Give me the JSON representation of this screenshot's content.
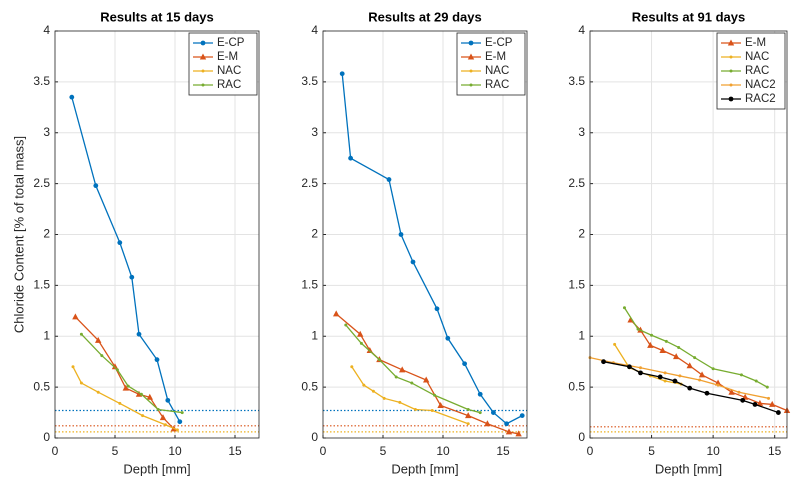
{
  "chart_data": [
    {
      "type": "line",
      "title": "Results at 15 days",
      "xlabel": "Depth [mm]",
      "ylabel": "Chloride Content [% of total mass]",
      "xlim": [
        0,
        17
      ],
      "ylim": [
        0,
        4
      ],
      "xticks": [
        0,
        5,
        10,
        15
      ],
      "yticks": [
        0,
        0.5,
        1,
        1.5,
        2,
        2.5,
        3,
        3.5,
        4
      ],
      "grid": true,
      "legend": "northeast",
      "series": [
        {
          "name": "E-CP",
          "color": "#0072BD",
          "marker": "o",
          "x": [
            1.4,
            3.4,
            5.4,
            6.4,
            7.0,
            8.5,
            9.4,
            10.4
          ],
          "values": [
            3.35,
            2.48,
            1.92,
            1.58,
            1.02,
            0.77,
            0.37,
            0.16
          ]
        },
        {
          "name": "E-M",
          "color": "#D95319",
          "marker": "^",
          "x": [
            1.7,
            3.6,
            5.0,
            5.9,
            7.0,
            7.9,
            9.0,
            9.9
          ],
          "values": [
            1.19,
            0.96,
            0.7,
            0.49,
            0.43,
            0.4,
            0.2,
            0.09
          ]
        },
        {
          "name": "NAC",
          "color": "#EDB120",
          "marker": ".",
          "x": [
            1.5,
            2.2,
            3.6,
            5.4,
            7.3,
            9.2,
            10.2
          ],
          "values": [
            0.7,
            0.54,
            0.45,
            0.34,
            0.22,
            0.13,
            0.08
          ]
        },
        {
          "name": "RAC",
          "color": "#77AC30",
          "marker": ".",
          "x": [
            2.2,
            3.9,
            5.2,
            6.1,
            7.2,
            8.6,
            10.6
          ],
          "values": [
            1.02,
            0.81,
            0.67,
            0.51,
            0.43,
            0.28,
            0.25
          ]
        }
      ],
      "reference_lines": [
        {
          "value": 0.27,
          "color": "#0072BD"
        },
        {
          "value": 0.12,
          "color": "#D95319"
        },
        {
          "value": 0.06,
          "color": "#EDB120"
        }
      ]
    },
    {
      "type": "line",
      "title": "Results at 29 days",
      "xlabel": "Depth [mm]",
      "xlim": [
        0,
        17
      ],
      "ylim": [
        0,
        4
      ],
      "xticks": [
        0,
        5,
        10,
        15
      ],
      "yticks": [
        0,
        0.5,
        1,
        1.5,
        2,
        2.5,
        3,
        3.5,
        4
      ],
      "grid": true,
      "legend": "northeast",
      "series": [
        {
          "name": "E-CP",
          "color": "#0072BD",
          "marker": "o",
          "x": [
            1.6,
            2.3,
            5.5,
            6.5,
            7.5,
            9.5,
            10.4,
            11.8,
            13.1,
            14.2,
            15.3,
            16.6
          ],
          "values": [
            3.58,
            2.75,
            2.54,
            2.0,
            1.73,
            1.27,
            0.98,
            0.73,
            0.43,
            0.25,
            0.14,
            0.22
          ]
        },
        {
          "name": "E-M",
          "color": "#D95319",
          "marker": "^",
          "x": [
            1.1,
            3.1,
            3.9,
            4.7,
            6.6,
            8.6,
            9.8,
            12.1,
            13.7,
            15.5,
            16.3
          ],
          "values": [
            1.22,
            1.02,
            0.86,
            0.77,
            0.67,
            0.57,
            0.32,
            0.22,
            0.14,
            0.06,
            0.04
          ]
        },
        {
          "name": "NAC",
          "color": "#EDB120",
          "marker": ".",
          "x": [
            2.4,
            3.4,
            4.2,
            5.1,
            6.4,
            7.7,
            9.1,
            12.1
          ],
          "values": [
            0.7,
            0.52,
            0.46,
            0.39,
            0.35,
            0.28,
            0.27,
            0.14
          ]
        },
        {
          "name": "RAC",
          "color": "#77AC30",
          "marker": ".",
          "x": [
            1.9,
            3.2,
            4.7,
            6.1,
            7.4,
            9.3,
            12.1,
            13.1
          ],
          "values": [
            1.11,
            0.93,
            0.77,
            0.6,
            0.54,
            0.42,
            0.28,
            0.25
          ]
        }
      ],
      "reference_lines": [
        {
          "value": 0.27,
          "color": "#0072BD"
        },
        {
          "value": 0.12,
          "color": "#D95319"
        },
        {
          "value": 0.06,
          "color": "#EDB120"
        }
      ]
    },
    {
      "type": "line",
      "title": "Results at 91 days",
      "xlabel": "Depth [mm]",
      "xlim": [
        0,
        16
      ],
      "ylim": [
        0,
        4
      ],
      "xticks": [
        0,
        5,
        10,
        15
      ],
      "yticks": [
        0,
        0.5,
        1,
        1.5,
        2,
        2.5,
        3,
        3.5,
        4
      ],
      "grid": true,
      "legend": "northeast",
      "series": [
        {
          "name": "E-M",
          "color": "#D95319",
          "marker": "^",
          "x": [
            3.3,
            4.1,
            4.9,
            5.9,
            7.0,
            8.1,
            9.1,
            10.4,
            11.5,
            12.6,
            13.8,
            14.8,
            16.0
          ],
          "values": [
            1.16,
            1.06,
            0.91,
            0.86,
            0.8,
            0.71,
            0.62,
            0.54,
            0.45,
            0.4,
            0.34,
            0.33,
            0.27
          ]
        },
        {
          "name": "NAC",
          "color": "#EDB120",
          "marker": ".",
          "x": [
            2.0,
            3.2,
            4.9,
            6.1,
            7.4
          ],
          "values": [
            0.92,
            0.69,
            0.61,
            0.56,
            0.53
          ]
        },
        {
          "name": "RAC",
          "color": "#77AC30",
          "marker": ".",
          "x": [
            2.8,
            3.9,
            5.0,
            6.2,
            7.2,
            8.5,
            10.0,
            12.3,
            13.5,
            14.4
          ],
          "values": [
            1.28,
            1.07,
            1.01,
            0.95,
            0.89,
            0.79,
            0.68,
            0.62,
            0.56,
            0.5
          ]
        },
        {
          "name": "NAC2",
          "color": "#F0A030",
          "marker": ".",
          "x": [
            0,
            1.9,
            4.1,
            6.1,
            7.3,
            8.9,
            10.4,
            12.1,
            14.5
          ],
          "values": [
            0.79,
            0.74,
            0.69,
            0.64,
            0.61,
            0.57,
            0.52,
            0.45,
            0.39
          ]
        },
        {
          "name": "RAC2",
          "color": "#000000",
          "marker": "o",
          "x": [
            1.1,
            3.2,
            4.1,
            5.7,
            6.9,
            8.1,
            9.5,
            12.4,
            13.4,
            15.3
          ],
          "values": [
            0.75,
            0.7,
            0.64,
            0.6,
            0.56,
            0.49,
            0.44,
            0.37,
            0.33,
            0.25
          ]
        }
      ],
      "reference_lines": [
        {
          "value": 0.11,
          "color": "#D95319"
        },
        {
          "value": 0.06,
          "color": "#EDB120"
        }
      ]
    }
  ]
}
